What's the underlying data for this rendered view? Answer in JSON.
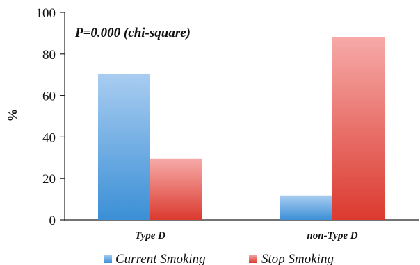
{
  "chart_data": {
    "type": "bar",
    "categories": [
      "Type D",
      "non-Type D"
    ],
    "series": [
      {
        "name": "Current Smoking",
        "values": [
          70.5,
          11.8
        ]
      },
      {
        "name": "Stop Smoking",
        "values": [
          29.5,
          88.2
        ]
      }
    ],
    "ylabel": "%",
    "xlabel": "",
    "ylim": [
      0,
      100
    ],
    "yticks": [
      0,
      20,
      40,
      60,
      80,
      100
    ],
    "annotation": "P=0.000 (chi-square)",
    "legend_position": "bottom",
    "grid": false,
    "colors": {
      "current_top": "#a9cdf1",
      "current_bottom": "#3b8fd6",
      "stop_top": "#f6aaa8",
      "stop_bottom": "#db3a2f"
    }
  }
}
